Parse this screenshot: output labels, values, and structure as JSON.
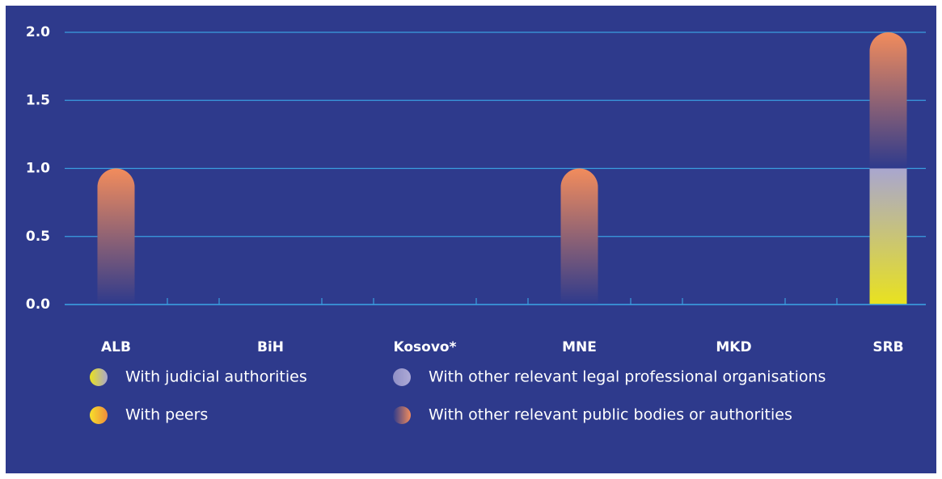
{
  "chart_data": {
    "type": "bar",
    "stacked": true,
    "categories": [
      "ALB",
      "BiH",
      "Kosovo*",
      "MNE",
      "MKD",
      "SRB"
    ],
    "series": [
      {
        "name": "With judicial authorities",
        "color": [
          "#e9e21e",
          "#a9a6cf"
        ],
        "values": [
          0,
          0,
          0,
          0,
          0,
          1
        ]
      },
      {
        "name": "With peers",
        "color": [
          "#f7e02a",
          "#f08c3c"
        ],
        "values": [
          0,
          0,
          0,
          0,
          0,
          0
        ]
      },
      {
        "name": "With other relevant legal professional organisations",
        "color": [
          "#8f8fc6",
          "#aeaad6"
        ],
        "values": [
          0,
          0,
          0,
          0,
          0,
          0
        ]
      },
      {
        "name": "With other relevant public bodies or authorities",
        "color": [
          "#2e3a8c",
          "#f28c5c"
        ],
        "values": [
          1,
          0,
          0,
          1,
          0,
          1
        ]
      }
    ],
    "ylim": [
      0,
      2
    ],
    "yticks": [
      {
        "value": 0,
        "label": "0.0"
      },
      0.5,
      {
        "value": 1,
        "label": "1.0"
      },
      1.5,
      {
        "value": 2,
        "label": "2.0"
      }
    ],
    "grid": true
  }
}
